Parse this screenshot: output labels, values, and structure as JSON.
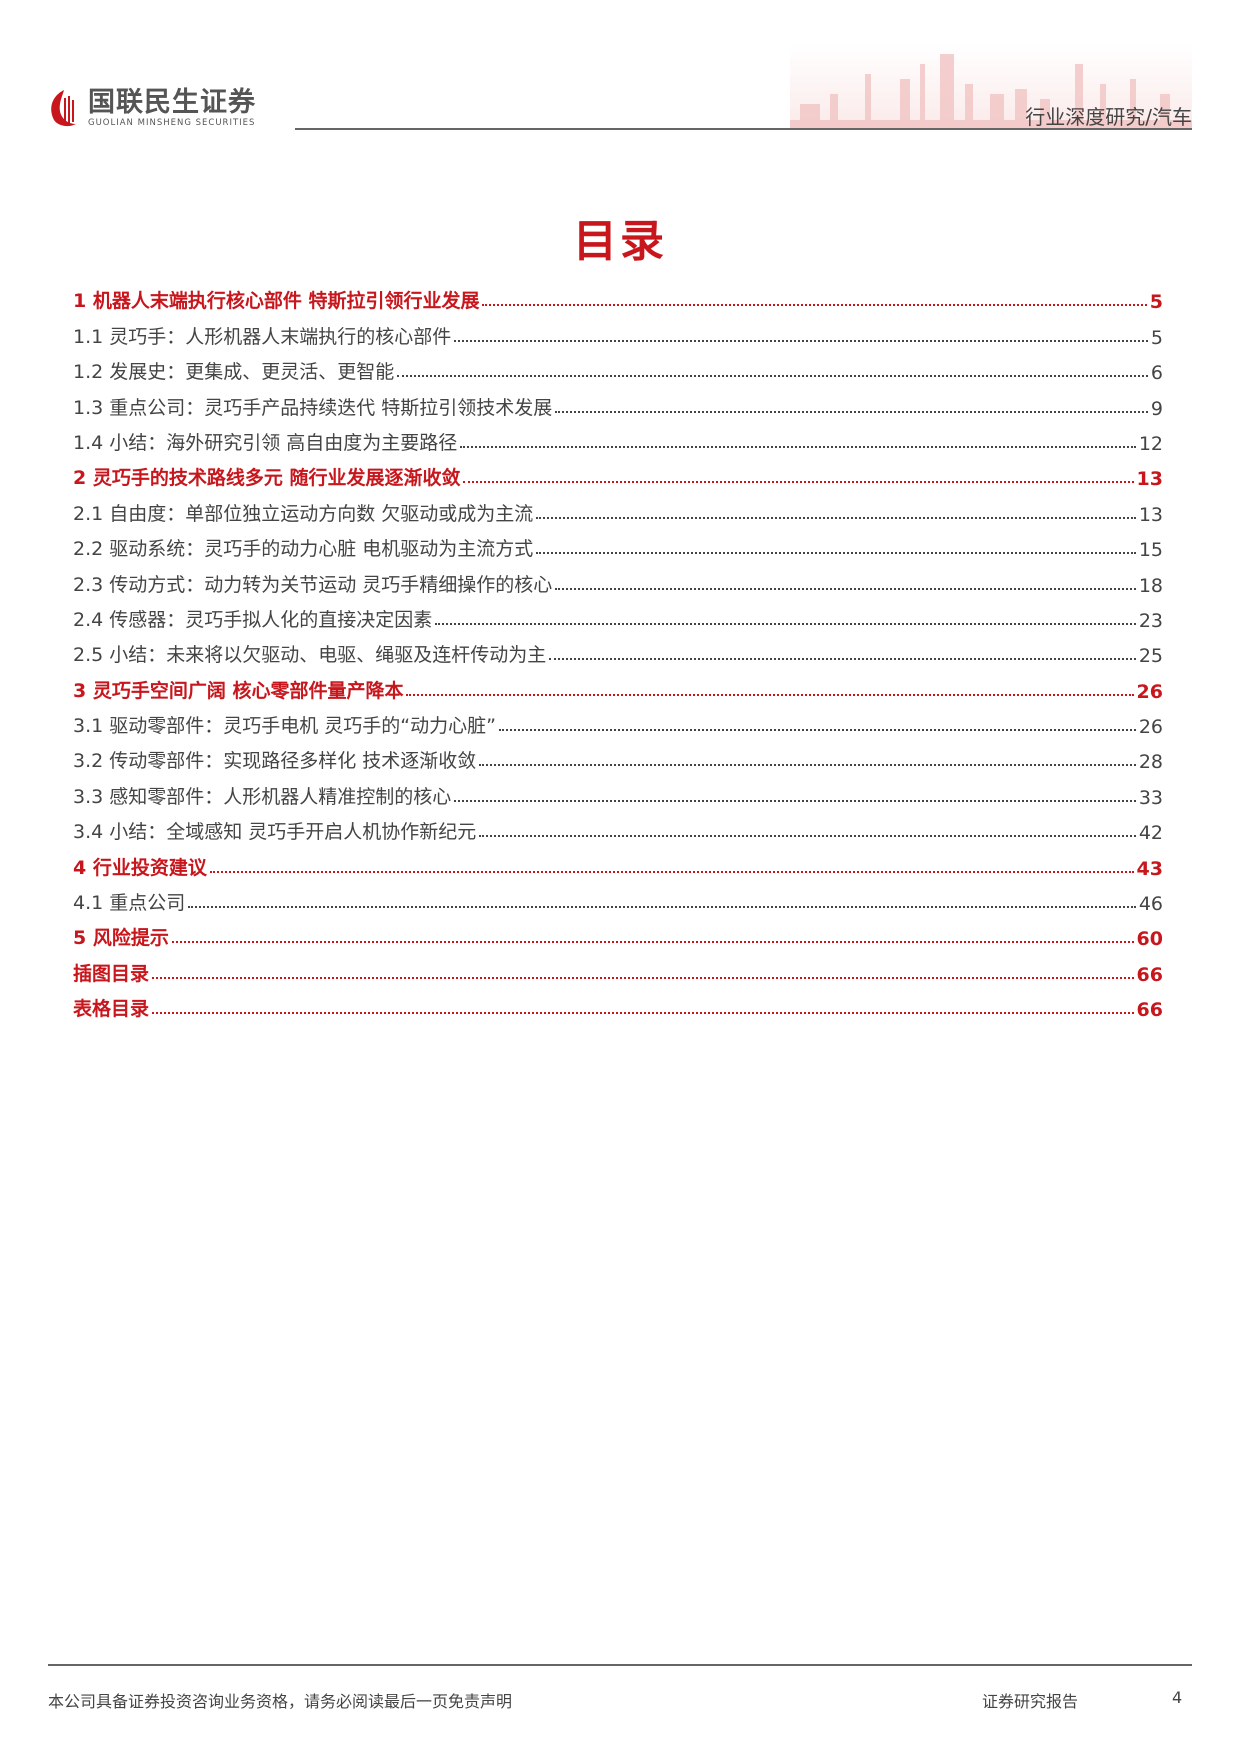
{
  "header": {
    "logo_cn": "国联民生证券",
    "logo_en": "GUOLIAN MINSHENG SECURITIES",
    "tag": "行业深度研究/汽车"
  },
  "toc": {
    "title": "目录",
    "entries": [
      {
        "label": "1 机器人末端执行核心部件 特斯拉引领行业发展",
        "page": "5",
        "level": 1
      },
      {
        "label": "1.1 灵巧手：人形机器人末端执行的核心部件",
        "page": "5",
        "level": 2
      },
      {
        "label": "1.2 发展史：更集成、更灵活、更智能",
        "page": "6",
        "level": 2
      },
      {
        "label": "1.3 重点公司：灵巧手产品持续迭代 特斯拉引领技术发展",
        "page": "9",
        "level": 2
      },
      {
        "label": "1.4 小结：海外研究引领 高自由度为主要路径",
        "page": "12",
        "level": 2
      },
      {
        "label": "2 灵巧手的技术路线多元 随行业发展逐渐收敛",
        "page": "13",
        "level": 1
      },
      {
        "label": "2.1 自由度：单部位独立运动方向数 欠驱动或成为主流",
        "page": "13",
        "level": 2
      },
      {
        "label": "2.2 驱动系统：灵巧手的动力心脏 电机驱动为主流方式",
        "page": "15",
        "level": 2
      },
      {
        "label": "2.3 传动方式：动力转为关节运动 灵巧手精细操作的核心",
        "page": "18",
        "level": 2
      },
      {
        "label": "2.4 传感器：灵巧手拟人化的直接决定因素",
        "page": "23",
        "level": 2
      },
      {
        "label": "2.5 小结：未来将以欠驱动、电驱、绳驱及连杆传动为主",
        "page": "25",
        "level": 2
      },
      {
        "label": "3 灵巧手空间广阔 核心零部件量产降本",
        "page": "26",
        "level": 1
      },
      {
        "label": "3.1 驱动零部件：灵巧手电机 灵巧手的“动力心脏”",
        "page": "26",
        "level": 2
      },
      {
        "label": "3.2 传动零部件：实现路径多样化 技术逐渐收敛",
        "page": "28",
        "level": 2
      },
      {
        "label": "3.3 感知零部件：人形机器人精准控制的核心",
        "page": "33",
        "level": 2
      },
      {
        "label": "3.4 小结：全域感知 灵巧手开启人机协作新纪元",
        "page": "42",
        "level": 2
      },
      {
        "label": "4 行业投资建议",
        "page": "43",
        "level": 1
      },
      {
        "label": "4.1 重点公司",
        "page": "46",
        "level": 2
      },
      {
        "label": "5 风险提示",
        "page": "60",
        "level": 1
      },
      {
        "label": "插图目录",
        "page": "66",
        "level": 1
      },
      {
        "label": "表格目录",
        "page": "66",
        "level": 1
      }
    ]
  },
  "footer": {
    "disclaimer": "本公司具备证券投资咨询业务资格，请务必阅读最后一页免责声明",
    "doc_type": "证券研究报告",
    "page_number": "4"
  },
  "colors": {
    "accent": "#c8161d",
    "text": "#444444"
  }
}
